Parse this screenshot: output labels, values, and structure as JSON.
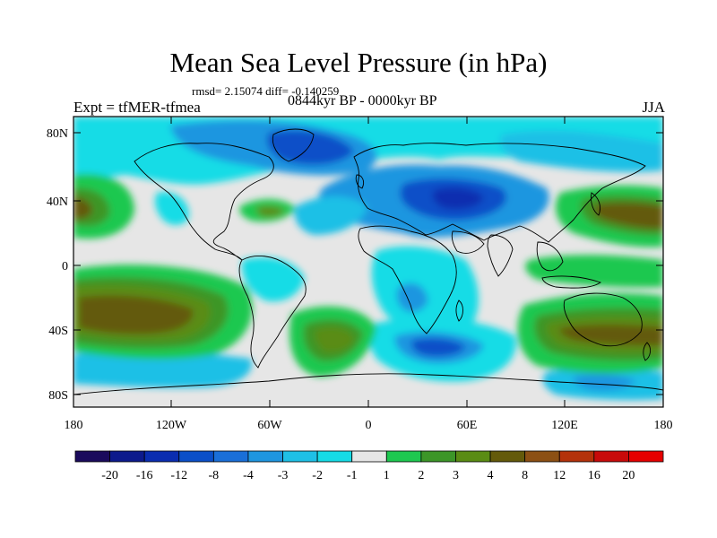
{
  "title": "Mean Sea Level Pressure (in hPa)",
  "stats": "rmsd= 2.15074  diff= -0.140259",
  "experiment": "Expt = tfMER-tfmea",
  "period": "0844kyr BP - 0000kyr BP",
  "season": "JJA",
  "lat_ticks": [
    "80N",
    "40N",
    "0",
    "40S",
    "80S"
  ],
  "lon_ticks": [
    "180",
    "120W",
    "60W",
    "0",
    "60E",
    "120E",
    "180"
  ],
  "colorbar": {
    "labels": [
      "-20",
      "-16",
      "-12",
      "-8",
      "-4",
      "-3",
      "-2",
      "-1",
      "1",
      "2",
      "3",
      "4",
      "8",
      "12",
      "16",
      "20"
    ],
    "colors": [
      "#1a0a5c",
      "#0d1a8c",
      "#0a2db0",
      "#0a4fc8",
      "#1a6fd8",
      "#1f96e0",
      "#1fc0e6",
      "#16dce6",
      "#e6e6e6",
      "#1ec850",
      "#3c9628",
      "#5a8c14",
      "#645a0a",
      "#8c5014",
      "#b4320a",
      "#c80a0a",
      "#e60000"
    ]
  },
  "colors": {
    "land_outline": "#000000",
    "neutral": "#e6e6e6"
  }
}
